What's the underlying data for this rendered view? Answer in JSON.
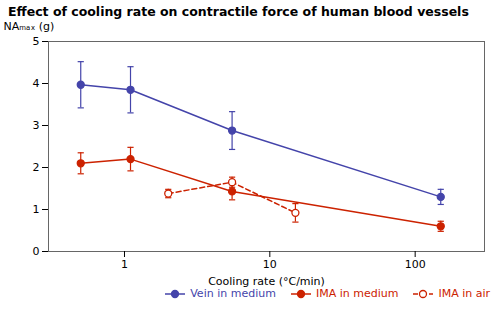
{
  "chart_data": {
    "type": "line",
    "title": "Effect of cooling rate on contractile force of human blood vessels",
    "xlabel": "Cooling rate (°C/min)",
    "ylabel": "NAₘₐₓ (g)",
    "log": "x",
    "xlim": [
      0.3,
      300
    ],
    "xticks": [
      1,
      10,
      100
    ],
    "ylim": [
      0,
      5
    ],
    "yticks": [
      0,
      1,
      2,
      3,
      4,
      5
    ],
    "grid": false,
    "legend": "lower right",
    "series": [
      {
        "name": "Vein in medium",
        "color": "#4444aa",
        "marker": "circle",
        "line_style": "solid",
        "x": [
          0.5,
          1.1,
          5.5,
          150
        ],
        "values": [
          3.97,
          3.85,
          2.88,
          1.3
        ],
        "yerr": [
          0.55,
          0.55,
          0.45,
          0.18
        ]
      },
      {
        "name": "IMA in medium",
        "color": "#cc2200",
        "marker": "circle",
        "line_style": "solid",
        "x": [
          0.5,
          1.1,
          5.5,
          150
        ],
        "values": [
          2.1,
          2.2,
          1.43,
          0.6
        ],
        "yerr": [
          0.25,
          0.28,
          0.2,
          0.12
        ]
      },
      {
        "name": "IMA in air",
        "color": "#cc2200",
        "marker": "open_circle",
        "line_style": "dashed",
        "x": [
          2.0,
          5.5,
          15.0
        ],
        "values": [
          1.38,
          1.65,
          0.92
        ],
        "yerr": [
          0.1,
          0.12,
          0.22
        ]
      }
    ]
  }
}
